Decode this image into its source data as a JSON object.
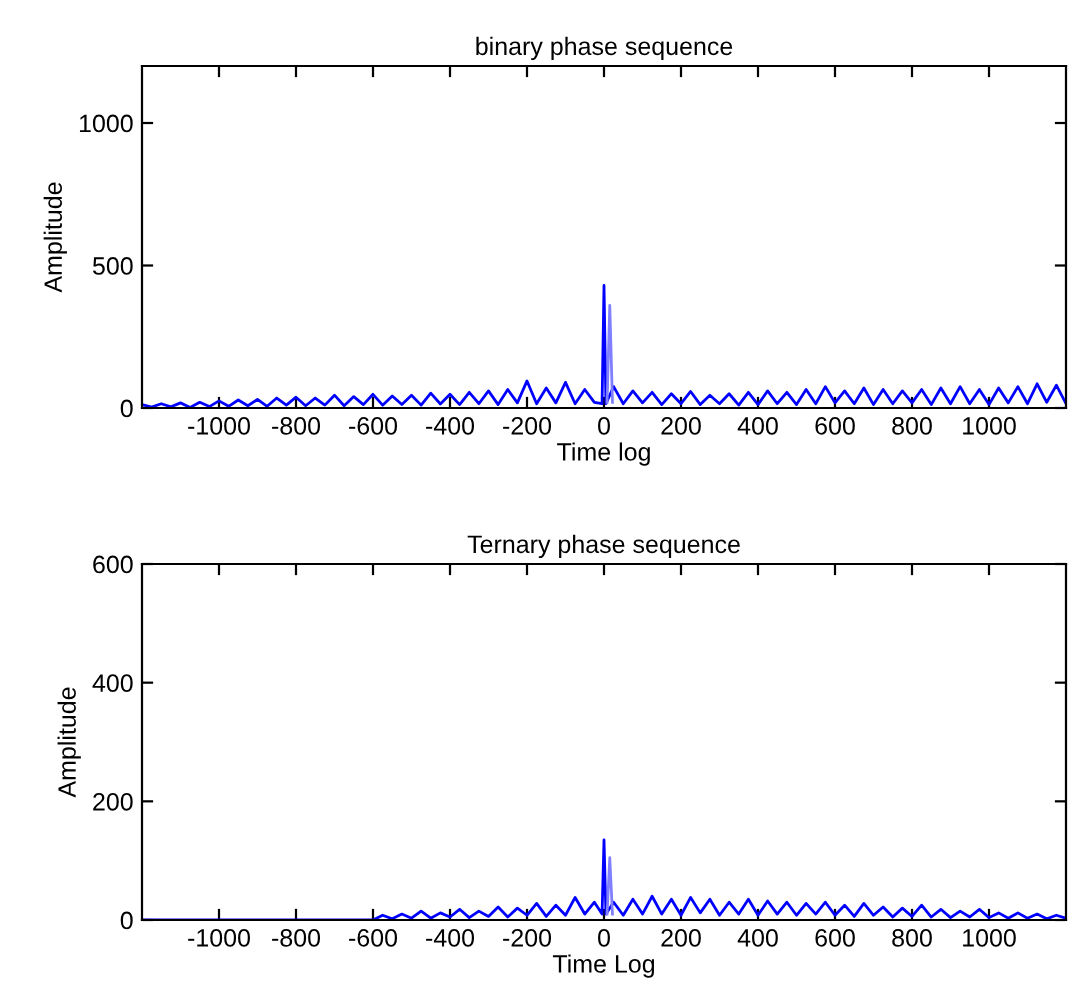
{
  "chart_data": [
    {
      "type": "line",
      "title": "binary phase sequence",
      "xlabel": "Time log",
      "ylabel": "Amplitude",
      "xlim": [
        -1200,
        1200
      ],
      "ylim": [
        0,
        1200
      ],
      "xticks": [
        -1000,
        -800,
        -600,
        -400,
        -200,
        0,
        200,
        400,
        600,
        800,
        1000
      ],
      "yticks": [
        0,
        500,
        1000
      ],
      "grid": false,
      "legend": false,
      "series": [
        {
          "color": "#0000ff",
          "x": [
            -1200,
            -1175,
            -1150,
            -1125,
            -1100,
            -1075,
            -1050,
            -1025,
            -1000,
            -975,
            -950,
            -925,
            -900,
            -875,
            -850,
            -825,
            -800,
            -775,
            -750,
            -725,
            -700,
            -675,
            -650,
            -625,
            -600,
            -575,
            -550,
            -525,
            -500,
            -475,
            -450,
            -425,
            -400,
            -375,
            -350,
            -325,
            -300,
            -275,
            -250,
            -225,
            -200,
            -175,
            -150,
            -125,
            -100,
            -75,
            -50,
            -25,
            -5,
            0,
            5,
            25,
            50,
            75,
            100,
            125,
            150,
            175,
            200,
            225,
            250,
            275,
            300,
            325,
            350,
            375,
            400,
            425,
            450,
            475,
            500,
            525,
            550,
            575,
            600,
            625,
            650,
            675,
            700,
            725,
            750,
            775,
            800,
            825,
            850,
            875,
            900,
            925,
            950,
            975,
            1000,
            1025,
            1050,
            1075,
            1100,
            1125,
            1150,
            1175,
            1200
          ],
          "values": [
            12,
            3,
            15,
            4,
            18,
            2,
            20,
            5,
            25,
            6,
            28,
            8,
            30,
            6,
            35,
            10,
            38,
            8,
            35,
            10,
            45,
            8,
            40,
            12,
            48,
            10,
            42,
            12,
            45,
            10,
            52,
            14,
            48,
            12,
            55,
            15,
            60,
            12,
            65,
            18,
            95,
            15,
            70,
            18,
            90,
            15,
            65,
            20,
            15,
            430,
            15,
            75,
            15,
            60,
            18,
            55,
            12,
            50,
            15,
            58,
            12,
            45,
            15,
            50,
            10,
            55,
            12,
            60,
            15,
            55,
            12,
            65,
            15,
            75,
            18,
            60,
            15,
            70,
            12,
            65,
            15,
            60,
            18,
            65,
            12,
            70,
            15,
            75,
            15,
            65,
            12,
            70,
            18,
            75,
            15,
            85,
            20,
            80,
            15
          ]
        },
        {
          "color": "#7f7fff",
          "x": [
            8,
            15,
            22
          ],
          "values": [
            20,
            360,
            20
          ]
        }
      ]
    },
    {
      "type": "line",
      "title": "Ternary phase sequence",
      "xlabel": "Time Log",
      "ylabel": "Amplitude",
      "xlim": [
        -1200,
        1200
      ],
      "ylim": [
        0,
        600
      ],
      "xticks": [
        -1000,
        -800,
        -600,
        -400,
        -200,
        0,
        200,
        400,
        600,
        800,
        1000
      ],
      "yticks": [
        0,
        200,
        400,
        600
      ],
      "grid": false,
      "legend": false,
      "series": [
        {
          "color": "#0000ff",
          "x": [
            -1200,
            -600,
            -575,
            -550,
            -525,
            -500,
            -475,
            -450,
            -425,
            -400,
            -375,
            -350,
            -325,
            -300,
            -275,
            -250,
            -225,
            -200,
            -175,
            -150,
            -125,
            -100,
            -75,
            -50,
            -25,
            -5,
            0,
            5,
            25,
            50,
            75,
            100,
            125,
            150,
            175,
            200,
            225,
            250,
            275,
            300,
            325,
            350,
            375,
            400,
            425,
            450,
            475,
            500,
            525,
            550,
            575,
            600,
            625,
            650,
            675,
            700,
            725,
            750,
            775,
            800,
            825,
            850,
            875,
            900,
            925,
            950,
            975,
            1000,
            1025,
            1050,
            1075,
            1100,
            1125,
            1150,
            1175,
            1200
          ],
          "values": [
            0,
            0,
            8,
            2,
            10,
            3,
            15,
            3,
            12,
            5,
            18,
            4,
            15,
            6,
            22,
            5,
            20,
            8,
            28,
            6,
            25,
            8,
            38,
            10,
            30,
            10,
            135,
            10,
            30,
            8,
            35,
            10,
            40,
            10,
            35,
            8,
            38,
            12,
            35,
            8,
            30,
            10,
            35,
            8,
            32,
            10,
            30,
            8,
            28,
            10,
            30,
            8,
            25,
            6,
            28,
            8,
            22,
            5,
            20,
            6,
            25,
            5,
            18,
            4,
            15,
            5,
            18,
            4,
            12,
            3,
            12,
            3,
            10,
            2,
            8,
            3
          ]
        },
        {
          "color": "#7f7fff",
          "x": [
            8,
            15,
            22
          ],
          "values": [
            10,
            105,
            10
          ]
        }
      ]
    }
  ]
}
